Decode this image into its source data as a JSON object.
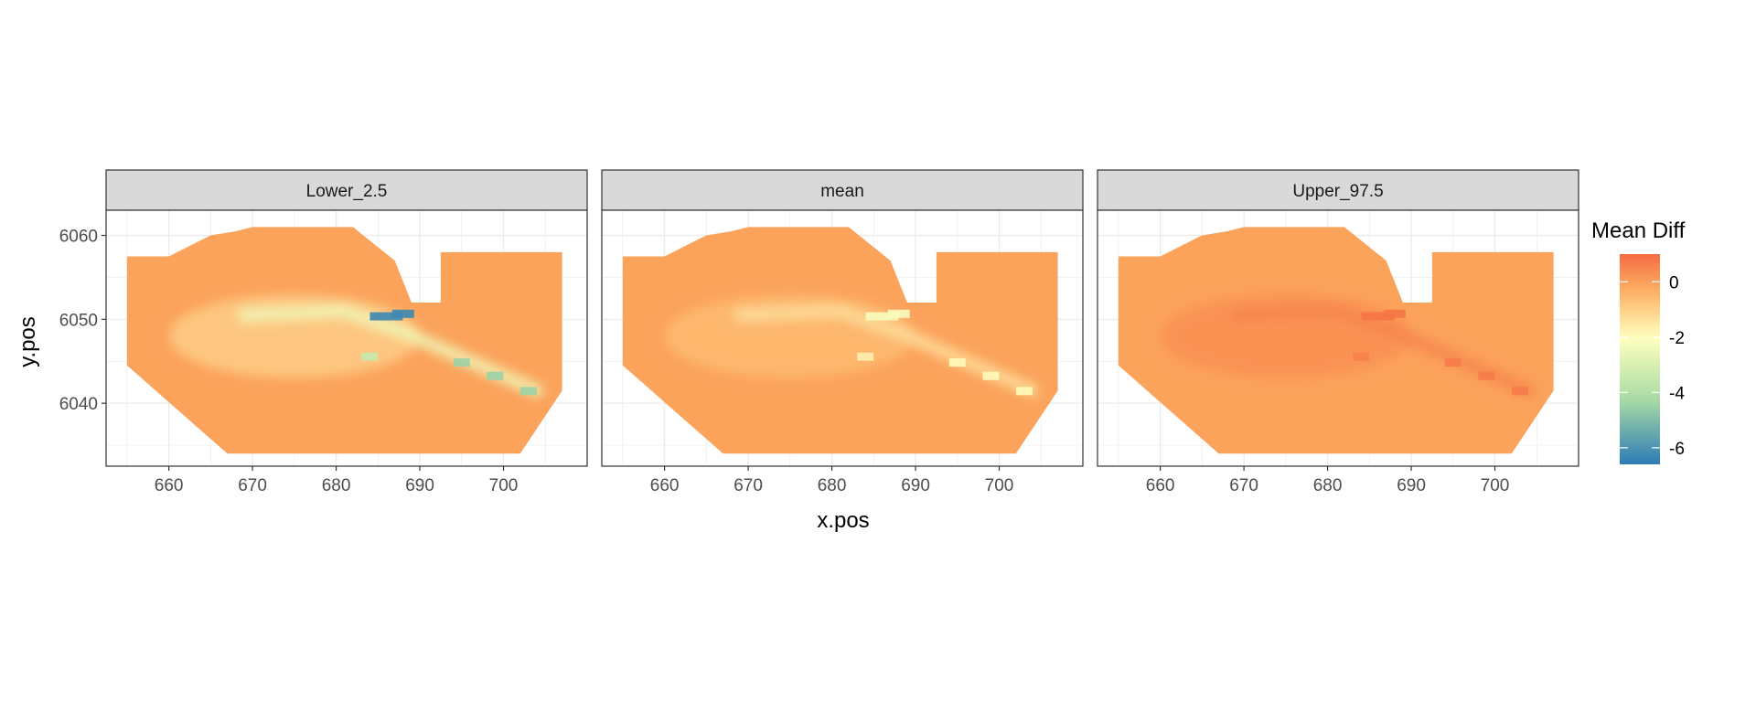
{
  "chart_data": {
    "type": "heatmap",
    "panels": [
      "Lower_2.5",
      "mean",
      "Upper_97.5"
    ],
    "xlabel": "x.pos",
    "ylabel": "y.pos",
    "x_ticks": [
      660,
      670,
      680,
      690,
      700
    ],
    "y_ticks": [
      6040,
      6050,
      6060
    ],
    "xlim": [
      652.5,
      710
    ],
    "ylim": [
      6032.5,
      6063
    ],
    "grid": true,
    "legend": {
      "title": "Mean Diff",
      "position": "right",
      "ticks": [
        0,
        -2,
        -4,
        -6
      ],
      "range": [
        -6.6,
        1
      ],
      "palette": "Spectral",
      "colors": [
        "#2c7bb6",
        "#abdda4",
        "#ffffbf",
        "#fdae61",
        "#f46d43"
      ]
    },
    "domain_outline": [
      [
        655,
        6057.5
      ],
      [
        660,
        6057.5
      ],
      [
        665,
        6060
      ],
      [
        668,
        6060.5
      ],
      [
        670,
        6061
      ],
      [
        682,
        6061
      ],
      [
        687,
        6057
      ],
      [
        689,
        6052
      ],
      [
        692.5,
        6052
      ],
      [
        692.5,
        6058
      ],
      [
        707,
        6058
      ],
      [
        707,
        6041.5
      ],
      [
        704,
        6037
      ],
      [
        702,
        6034
      ],
      [
        667,
        6034
      ],
      [
        655,
        6044.5
      ]
    ],
    "panel_summary": [
      {
        "panel": "Lower_2.5",
        "background_value": 0.0,
        "min_value": -6.5
      },
      {
        "panel": "mean",
        "background_value": 0.0,
        "min_value": -2.3
      },
      {
        "panel": "Upper_97.5",
        "background_value": 0.0,
        "max_value": 0.9
      }
    ]
  }
}
